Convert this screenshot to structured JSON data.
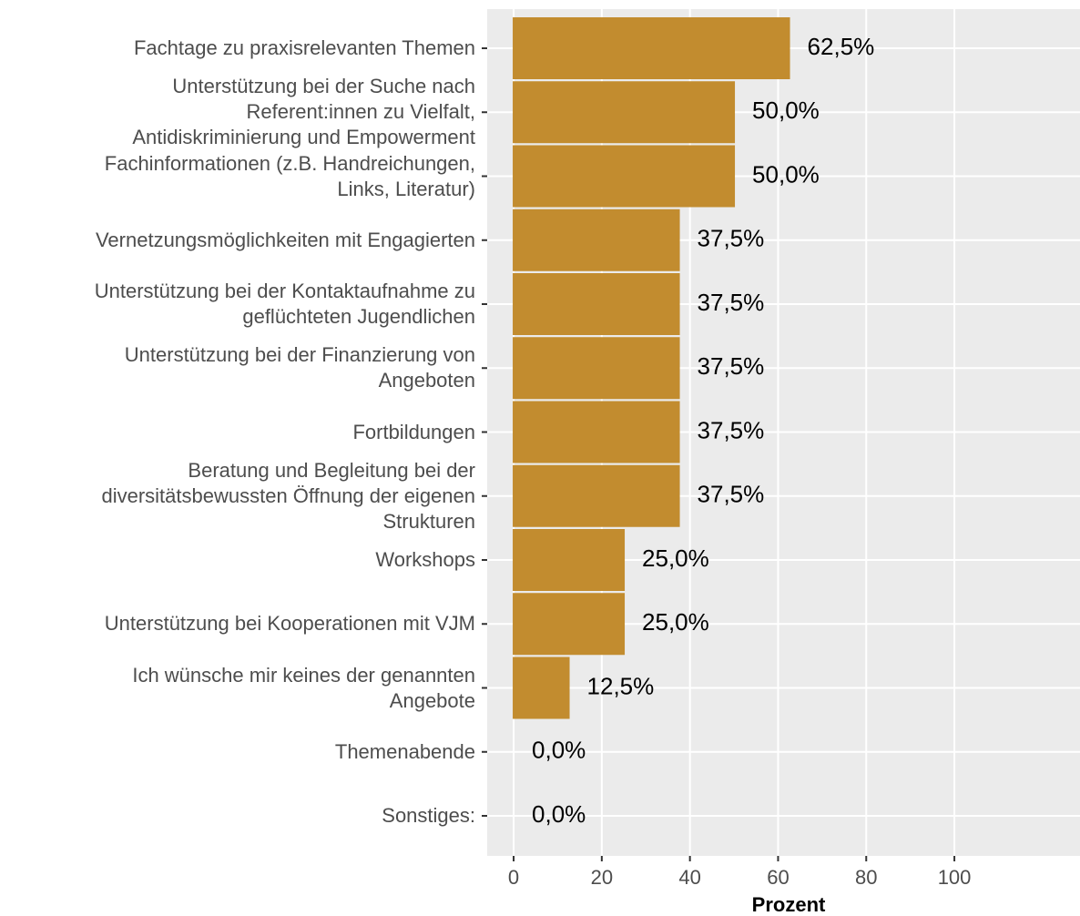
{
  "chart_data": {
    "type": "barh",
    "x_label": "Prozent",
    "categories": [
      "Fachtage zu praxisrelevanten Themen",
      "Unterstützung bei der Suche nach\nReferent:innen zu Vielfalt,\nAntidiskriminierung und Empowerment",
      "Fachinformationen (z.B. Handreichungen,\nLinks, Literatur)",
      "Vernetzungsmöglichkeiten mit Engagierten",
      "Unterstützung bei der Kontaktaufnahme zu\ngeflüchteten Jugendlichen",
      "Unterstützung bei der Finanzierung von\nAngeboten",
      "Fortbildungen",
      "Beratung und Begleitung bei der\ndiversitätsbewussten Öffnung der eigenen\nStrukturen",
      "Workshops",
      "Unterstützung bei Kooperationen mit VJM",
      "Ich wünsche mir keines der genannten\nAngebote",
      "Themenabende",
      "Sonstiges:"
    ],
    "values": [
      62.5,
      50,
      50,
      37.5,
      37.5,
      37.5,
      37.5,
      37.5,
      25,
      25,
      12.5,
      0,
      0
    ],
    "value_labels": [
      "62,5%",
      "50,0%",
      "50,0%",
      "37,5%",
      "37,5%",
      "37,5%",
      "37,5%",
      "37,5%",
      "25,0%",
      "25,0%",
      "12,5%",
      "0,0%",
      "0,0%"
    ],
    "color": "#c28c2f",
    "xlim": [
      -6,
      128.5
    ],
    "xticks": [
      0,
      20,
      40,
      60,
      80,
      100
    ],
    "grid": true
  }
}
